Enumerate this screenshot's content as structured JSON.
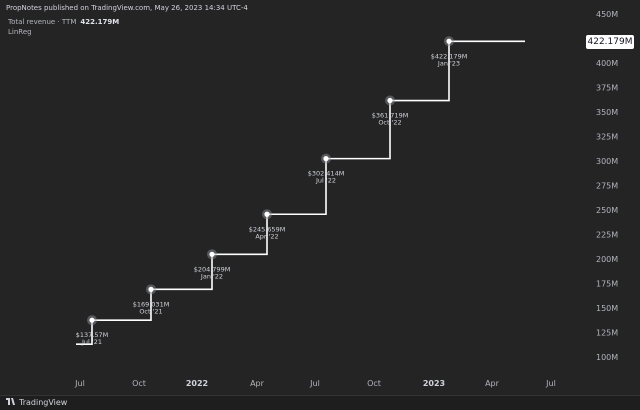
{
  "header": {
    "published": "PropNotes published on TradingView.com, May 26, 2023 14:34 UTC-4"
  },
  "legend": {
    "series_label": "Total revenue · TTM",
    "series_value": "422.179M",
    "indicator": "LinReg"
  },
  "footer": {
    "brand": "TradingView"
  },
  "price_tag": "422.179M",
  "colors": {
    "background": "#242424",
    "line": "#ffffff",
    "text": "#b2b5be",
    "marker_glow": "#9598a1"
  },
  "chart_data": {
    "type": "line",
    "step": true,
    "title": "",
    "xlabel": "",
    "ylabel": "",
    "ylim": [
      100,
      450
    ],
    "yticks": [
      "100M",
      "125M",
      "150M",
      "175M",
      "200M",
      "225M",
      "250M",
      "275M",
      "300M",
      "325M",
      "350M",
      "375M",
      "400M",
      "425M",
      "450M"
    ],
    "xticks": [
      "Jul",
      "Oct",
      "2022",
      "Apr",
      "Jul",
      "Oct",
      "2023",
      "Apr",
      "Jul"
    ],
    "series": [
      {
        "x": [
          "Jul '21",
          "Oct '21",
          "Jan '22",
          "Apr '22",
          "Jul '22",
          "Oct '22",
          "Jan '23"
        ],
        "values": [
          137.57,
          169.031,
          204.799,
          245.659,
          302.414,
          361.719,
          422.179
        ],
        "value_labels": [
          "$137.57M",
          "$169.031M",
          "$204.799M",
          "$245.659M",
          "$302.414M",
          "$361.719M",
          "$422.179M"
        ],
        "date_labels": [
          "Jul '21",
          "Oct '21",
          "Jan '22",
          "Apr '22",
          "Jul '22",
          "Oct '22",
          "Jan '23"
        ]
      }
    ]
  }
}
